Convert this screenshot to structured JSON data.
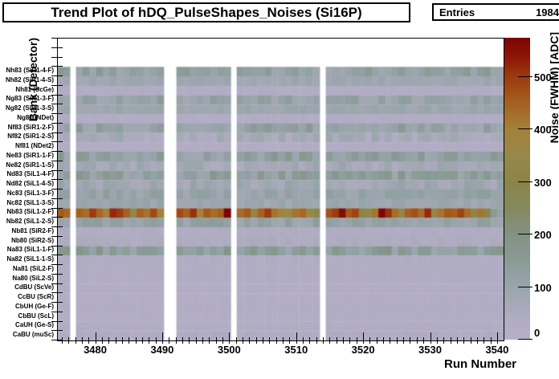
{
  "title": "Trend Plot of hDQ_PulseShapes_Noises (Si16P)",
  "stats": {
    "label": "Entries",
    "value": "1984"
  },
  "x_axis": {
    "title": "Run Number",
    "min": 3474.3,
    "max": 3540.85,
    "major_ticks": [
      3480,
      3490,
      3500,
      3510,
      3520,
      3530,
      3540
    ],
    "minor_tick_step": 1
  },
  "y_axis": {
    "title": "Bank (Detector)",
    "empty_top_rows": 3
  },
  "colorbar": {
    "title": "Noise (FWHM) [ADC]",
    "min": 0,
    "max": 575,
    "ticks": [
      0,
      100,
      200,
      300,
      400,
      500
    ]
  },
  "chart_data": {
    "type": "heatmap",
    "title": "Trend Plot of hDQ_PulseShapes_Noises (Si16P)",
    "entries": 1984,
    "xlabel": "Run Number",
    "ylabel": "Bank (Detector)",
    "zlabel": "Noise (FWHM) [ADC]",
    "x_range": [
      3474.3,
      3540.85
    ],
    "z_range": [
      0,
      575
    ],
    "grid": false,
    "run_blocks": [
      [
        3474.3,
        3476.1
      ],
      [
        3477.0,
        3490.1
      ],
      [
        3492.0,
        3500.1
      ],
      [
        3501.0,
        3513.4
      ],
      [
        3514.3,
        3540.85
      ]
    ],
    "palette_stops": [
      [
        0,
        "#b6afcb"
      ],
      [
        40,
        "#b0acc2"
      ],
      [
        80,
        "#a2a8b2"
      ],
      [
        110,
        "#95a3a8"
      ],
      [
        150,
        "#8a9b96"
      ],
      [
        200,
        "#829282"
      ],
      [
        250,
        "#85895f"
      ],
      [
        300,
        "#8b8449"
      ],
      [
        350,
        "#97884a"
      ],
      [
        400,
        "#a3813a"
      ],
      [
        450,
        "#a56020"
      ],
      [
        500,
        "#9c3a10"
      ],
      [
        540,
        "#8d1505"
      ],
      [
        575,
        "#7a0403"
      ]
    ],
    "rows": [
      {
        "label": "Nh83 (SiR1-4-F)",
        "mean": 120,
        "spread": 40
      },
      {
        "label": "Nh82 (SiR1-4-S)",
        "mean": 85,
        "spread": 15
      },
      {
        "label": "Nh81 (ScGe)",
        "mean": 30,
        "spread": 8
      },
      {
        "label": "Ng83 (SiR1-3-F)",
        "mean": 110,
        "spread": 35
      },
      {
        "label": "Ng82 (SiR1-3-S)",
        "mean": 90,
        "spread": 15
      },
      {
        "label": "Ng81 (NDet)",
        "mean": 30,
        "spread": 8
      },
      {
        "label": "Nf83 (SiR1-2-F)",
        "mean": 115,
        "spread": 40
      },
      {
        "label": "Nf82 (SiR1-2-S)",
        "mean": 60,
        "spread": 35
      },
      {
        "label": "Nf81 (NDet2)",
        "mean": 32,
        "spread": 8
      },
      {
        "label": "Ne83 (SiR1-1-F)",
        "mean": 125,
        "spread": 45
      },
      {
        "label": "Ne82 (SiR1-1-S)",
        "mean": 70,
        "spread": 30
      },
      {
        "label": "Nd83 (SiL1-4-F)",
        "mean": 130,
        "spread": 45
      },
      {
        "label": "Nd82 (SiL1-4-S)",
        "mean": 80,
        "spread": 30
      },
      {
        "label": "Nc83 (SiL1-3-F)",
        "mean": 105,
        "spread": 30
      },
      {
        "label": "Nc82 (SiL1-3-S)",
        "mean": 90,
        "spread": 20
      },
      {
        "label": "Nb83 (SiL1-2-F)",
        "mean": 450,
        "spread": 90,
        "values": [
          460,
          440,
          450,
          430,
          500,
          440,
          390,
          520,
          500,
          450,
          330,
          450,
          420,
          480,
          400,
          480,
          450,
          510,
          400,
          460,
          430,
          450,
          575,
          430,
          460,
          330,
          450,
          500,
          420,
          380,
          350,
          420,
          440,
          350,
          310,
          470,
          500,
          560,
          460,
          490,
          300,
          320,
          420,
          570,
          510,
          430,
          330,
          450,
          470,
          430,
          520,
          330,
          420,
          460,
          450,
          490,
          430,
          310,
          420,
          300,
          150,
          110
        ]
      },
      {
        "label": "Nb82 (SiL1-2-S)",
        "mean": 110,
        "spread": 30
      },
      {
        "label": "Nb81 (SiR2-F)",
        "mean": 35,
        "spread": 10
      },
      {
        "label": "Nb80 (SiR2-S)",
        "mean": 42,
        "spread": 12
      },
      {
        "label": "Na83 (SiL1-1-F)",
        "mean": 140,
        "spread": 50
      },
      {
        "label": "Na82 (SiL1-1-S)",
        "mean": 35,
        "spread": 10
      },
      {
        "label": "Na81 (SiL2-F)",
        "mean": 30,
        "spread": 8
      },
      {
        "label": "Na80 (SiL2-S)",
        "mean": 30,
        "spread": 8
      },
      {
        "label": "CdBU (ScVe)",
        "mean": 26,
        "spread": 6
      },
      {
        "label": "CcBU (ScR)",
        "mean": 26,
        "spread": 6
      },
      {
        "label": "CbUH (Ge-F)",
        "mean": 30,
        "spread": 8
      },
      {
        "label": "CbBU (ScL)",
        "mean": 26,
        "spread": 6
      },
      {
        "label": "CaUH (Ge-S)",
        "mean": 30,
        "spread": 8
      },
      {
        "label": "CaBU (muSc)",
        "mean": 38,
        "spread": 10
      }
    ]
  }
}
